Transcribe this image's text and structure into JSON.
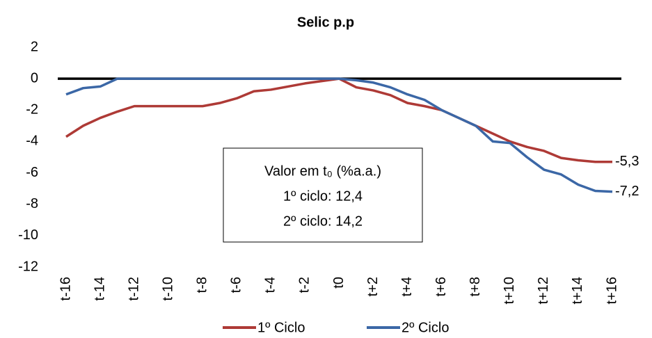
{
  "chart_data": {
    "type": "line",
    "title": "Selic p.p",
    "categories": [
      "t-16",
      null,
      "t-14",
      null,
      "t-12",
      null,
      "t-10",
      null,
      "t-8",
      null,
      "t-6",
      null,
      "t-4",
      null,
      "t-2",
      null,
      "t0",
      null,
      "t+2",
      null,
      "t+4",
      null,
      "t+6",
      null,
      "t+8",
      null,
      "t+10",
      null,
      "t+12",
      null,
      "t+14",
      null,
      "t+16"
    ],
    "series": [
      {
        "name": "1º Ciclo",
        "color": "#ae3a36",
        "values": [
          -3.7,
          -3.0,
          -2.5,
          -2.1,
          -1.75,
          -1.75,
          -1.75,
          -1.75,
          -1.75,
          -1.55,
          -1.25,
          -0.8,
          -0.7,
          -0.5,
          -0.3,
          -0.15,
          0,
          -0.55,
          -0.75,
          -1.05,
          -1.55,
          -1.75,
          -2.0,
          -2.5,
          -3.0,
          -3.5,
          -4.0,
          -4.35,
          -4.6,
          -5.05,
          -5.2,
          -5.3,
          -5.3
        ],
        "value_labels": [
          null,
          null,
          null,
          null,
          null,
          null,
          null,
          null,
          null,
          null,
          null,
          null,
          null,
          null,
          null,
          null,
          null,
          null,
          null,
          null,
          null,
          null,
          null,
          null,
          null,
          null,
          null,
          null,
          null,
          null,
          null,
          null,
          "-5,3"
        ]
      },
      {
        "name": "2º Ciclo",
        "color": "#3b67a6",
        "values": [
          -1.0,
          -0.6,
          -0.5,
          0,
          0,
          0,
          0,
          0,
          0,
          0,
          0,
          0,
          0,
          0,
          0,
          0,
          0,
          -0.1,
          -0.25,
          -0.55,
          -1.0,
          -1.35,
          -2.0,
          -2.5,
          -3.0,
          -4.0,
          -4.1,
          -5.0,
          -5.8,
          -6.1,
          -6.75,
          -7.15,
          -7.2
        ],
        "value_labels": [
          null,
          null,
          null,
          null,
          null,
          null,
          null,
          null,
          null,
          null,
          null,
          null,
          null,
          null,
          null,
          null,
          null,
          null,
          null,
          null,
          null,
          null,
          null,
          null,
          null,
          null,
          null,
          null,
          null,
          null,
          null,
          null,
          "-7,2"
        ]
      }
    ],
    "ylim": [
      -12,
      2
    ],
    "yticks": [
      -12,
      -10,
      -8,
      -6,
      -4,
      -2,
      0,
      2
    ],
    "annotations": [
      {
        "text": "Valor em t₀ (%a.a.)",
        "color": "#000000"
      },
      {
        "text": "1º ciclo: 12,4",
        "color": "#ae3a36"
      },
      {
        "text": "2º ciclo: 14,2",
        "color": "#3b67a6"
      }
    ],
    "legend": "bottom"
  }
}
